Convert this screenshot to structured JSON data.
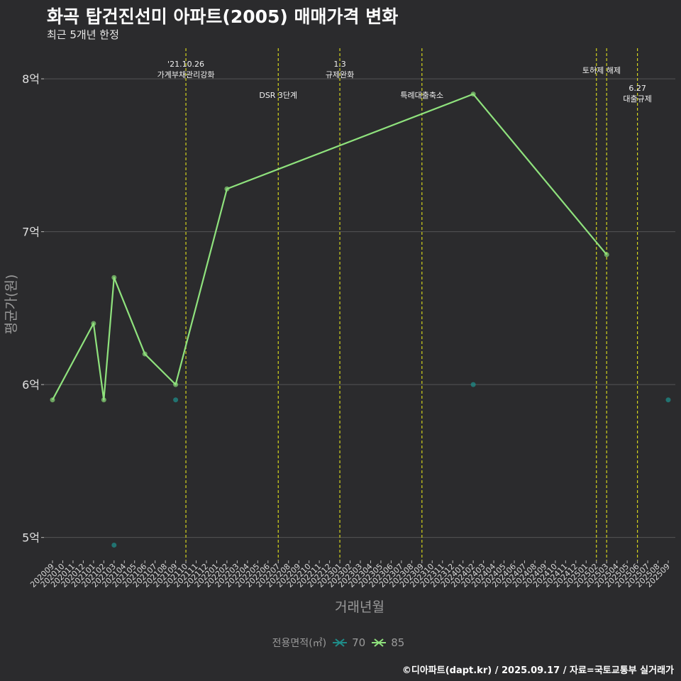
{
  "title": "화곡 탑건진선미 아파트(2005) 매매가격 변화",
  "subtitle": "최근 5개년 한정",
  "caption": "©디아파트(dapt.kr) / 2025.09.17 / 자료=국토교통부 실거래가",
  "legend": {
    "title": "전용면적(㎡)",
    "items": [
      {
        "label": "70",
        "color": "#1f8c88"
      },
      {
        "label": "85",
        "color": "#8fe27d"
      }
    ]
  },
  "colors": {
    "background": "#2b2b2d",
    "grid": "#555555",
    "event_line": "#d4d41c",
    "series_70": "#1f8c88",
    "series_85": "#8fe27d"
  },
  "chart_data": {
    "type": "line",
    "title": "화곡 탑건진선미 아파트(2005) 매매가격 변화",
    "subtitle": "최근 5개년 한정",
    "xlabel": "거래년월",
    "ylabel": "평균가(원)",
    "ylim": [
      4.85,
      8.2
    ],
    "x_ticks": [
      "202009",
      "202010",
      "202011",
      "202012",
      "202101",
      "202102",
      "202103",
      "202104",
      "202105",
      "202106",
      "202107",
      "202108",
      "202109",
      "202110",
      "202111",
      "202112",
      "202201",
      "202202",
      "202203",
      "202204",
      "202205",
      "202206",
      "202207",
      "202208",
      "202209",
      "202210",
      "202211",
      "202212",
      "202301",
      "202302",
      "202303",
      "202304",
      "202305",
      "202306",
      "202307",
      "202308",
      "202309",
      "202310",
      "202311",
      "202312",
      "202401",
      "202402",
      "202403",
      "202404",
      "202405",
      "202406",
      "202407",
      "202408",
      "202409",
      "202410",
      "202411",
      "202412",
      "202501",
      "202502",
      "202503",
      "202504",
      "202505",
      "202506",
      "202507",
      "202508",
      "202509"
    ],
    "y_ticks": [
      {
        "value": 5,
        "label": "5억"
      },
      {
        "value": 6,
        "label": "6억"
      },
      {
        "value": 7,
        "label": "7억"
      },
      {
        "value": 8,
        "label": "8억"
      }
    ],
    "series": [
      {
        "name": "70",
        "line": false,
        "points": [
          {
            "x": "202103",
            "y": 4.95
          },
          {
            "x": "202109",
            "y": 5.9
          },
          {
            "x": "202402",
            "y": 6.0
          },
          {
            "x": "202509",
            "y": 5.9
          }
        ]
      },
      {
        "name": "85",
        "line": true,
        "points": [
          {
            "x": "202009",
            "y": 5.9
          },
          {
            "x": "202101",
            "y": 6.4
          },
          {
            "x": "202102",
            "y": 5.9
          },
          {
            "x": "202103",
            "y": 6.7
          },
          {
            "x": "202106",
            "y": 6.2
          },
          {
            "x": "202109",
            "y": 6.0
          },
          {
            "x": "202202",
            "y": 7.28
          },
          {
            "x": "202402",
            "y": 7.9
          },
          {
            "x": "202503",
            "y": 6.85
          }
        ]
      }
    ],
    "events": [
      {
        "x": "202110",
        "label": "'21.10.26\n가계부채관리강화",
        "tier": "top"
      },
      {
        "x": "202207",
        "label": "DSR 3단계",
        "tier": "low"
      },
      {
        "x": "202301",
        "label": "1.3\n규제완화",
        "tier": "top"
      },
      {
        "x": "202309",
        "label": "특례대출축소",
        "tier": "low"
      },
      {
        "x": "202502",
        "label": "토허제 해제",
        "tier": "mid",
        "anchor_x": "202503"
      },
      {
        "x": "202503",
        "label": "",
        "tier": "mid"
      },
      {
        "x": "202506",
        "label": "6.27\n대출규제",
        "tier": "right"
      }
    ]
  }
}
